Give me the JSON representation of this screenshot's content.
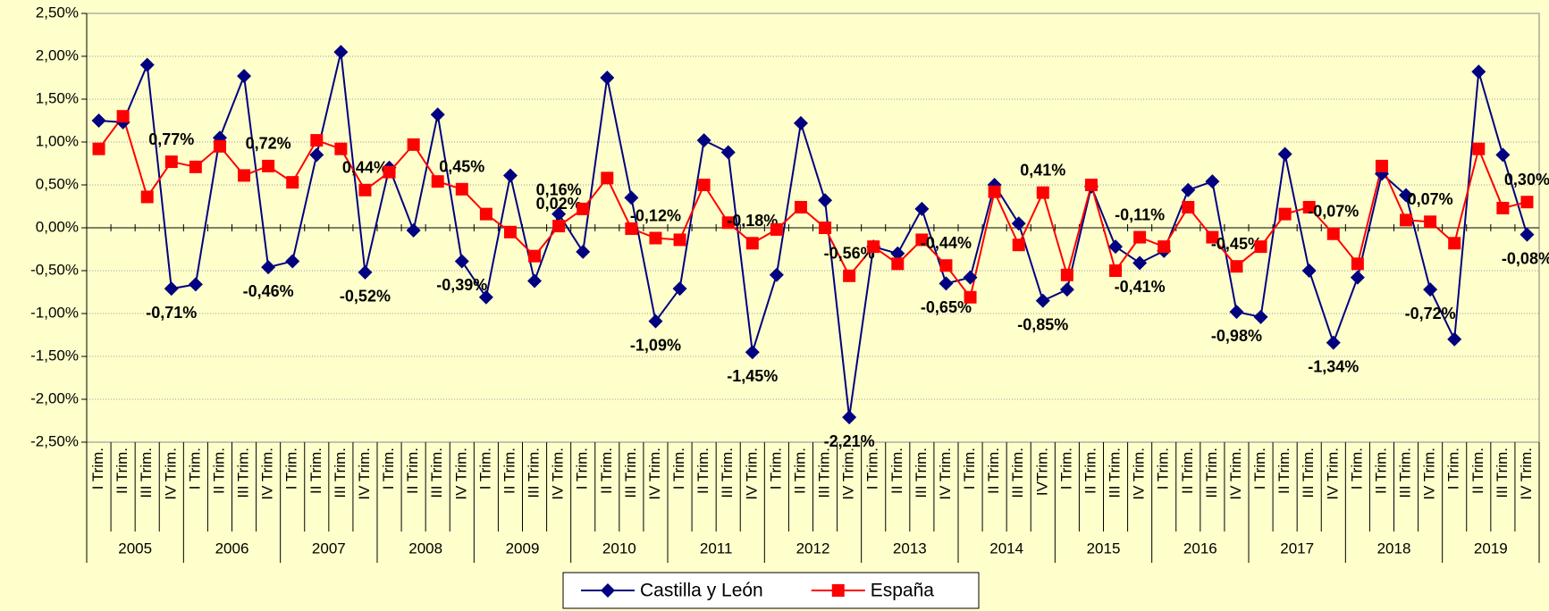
{
  "chart_data": {
    "type": "line",
    "categories": [
      "I Trim.",
      "II Trim.",
      "III Trim.",
      "IV Trim.",
      "I Trim.",
      "II Trim.",
      "III Trim.",
      "IV Trim.",
      "I Trim.",
      "II Trim.",
      "III Trim.",
      "IV Trim.",
      "I Trim.",
      "II Trim.",
      "III Trim.",
      "IV Trim.",
      "I Trim.",
      "II Trim.",
      "III Trim.",
      "IV Trim.",
      "I Trim.",
      "II Trim.",
      "III Trim.",
      "IV Trim.",
      "I Trim.",
      "II Trim.",
      "III Trim.",
      "IV Trim.",
      "I Trim.",
      "II Trim.",
      "III Trim.",
      "IV Trim.",
      "I Trim.",
      "II Trim.",
      "III Trim.",
      "IV Trim.",
      "I Trim.",
      "II Trim.",
      "III Trim.",
      "IVTrim.",
      "I Trim.",
      "II Trim.",
      "III Trim.",
      "IV Trim.",
      "I Trim.",
      "II Trim.",
      "III Trim.",
      "IV Trim.",
      "I Trim.",
      "II Trim.",
      "III Trim.",
      "IV Trim.",
      "I Trim.",
      "II Trim.",
      "III Trim.",
      "IV Trim.",
      "I Trim.",
      "II Trim.",
      "III Trim.",
      "IV Trim."
    ],
    "years": [
      "2005",
      "2006",
      "2007",
      "2008",
      "2009",
      "2010",
      "2011",
      "2012",
      "2013",
      "2014",
      "2015",
      "2016",
      "2017",
      "2018",
      "2019"
    ],
    "series": [
      {
        "name": "Castilla y León",
        "color": "#000080",
        "marker": "diamond",
        "values": [
          1.25,
          1.23,
          1.9,
          -0.71,
          -0.66,
          1.05,
          1.77,
          -0.46,
          -0.39,
          0.85,
          2.05,
          -0.52,
          0.7,
          -0.03,
          1.32,
          -0.39,
          -0.81,
          0.61,
          -0.62,
          0.16,
          -0.28,
          1.75,
          0.35,
          -1.09,
          -0.71,
          1.02,
          0.88,
          -1.45,
          -0.55,
          1.22,
          0.32,
          -2.21,
          -0.22,
          -0.3,
          0.22,
          -0.65,
          -0.58,
          0.5,
          0.05,
          -0.85,
          -0.72,
          0.48,
          -0.22,
          -0.41,
          -0.27,
          0.44,
          0.54,
          -0.98,
          -1.04,
          0.86,
          -0.5,
          -1.34,
          -0.58,
          0.63,
          0.38,
          -0.72,
          -1.3,
          1.82,
          0.85,
          -0.08
        ],
        "value_labels": [
          null,
          null,
          null,
          "-0,71%",
          null,
          null,
          null,
          "-0,46%",
          null,
          null,
          null,
          "-0,52%",
          null,
          null,
          null,
          "-0,39%",
          null,
          null,
          null,
          "0,16%",
          null,
          null,
          null,
          "-1,09%",
          null,
          null,
          null,
          "-1,45%",
          null,
          null,
          null,
          "-2,21%",
          null,
          null,
          null,
          "-0,65%",
          null,
          null,
          null,
          "-0,85%",
          null,
          null,
          null,
          "-0,41%",
          null,
          null,
          null,
          "-0,98%",
          null,
          null,
          null,
          "-1,34%",
          null,
          null,
          null,
          "-0,72%",
          null,
          null,
          null,
          "-0,08%"
        ]
      },
      {
        "name": "España",
        "color": "#ff0000",
        "marker": "square",
        "values": [
          0.92,
          1.3,
          0.36,
          0.77,
          0.71,
          0.95,
          0.61,
          0.72,
          0.53,
          1.02,
          0.92,
          0.44,
          0.65,
          0.97,
          0.54,
          0.45,
          0.16,
          -0.05,
          -0.33,
          0.02,
          0.22,
          0.58,
          -0.01,
          -0.12,
          -0.14,
          0.5,
          0.06,
          -0.18,
          -0.02,
          0.24,
          0.0,
          -0.56,
          -0.22,
          -0.42,
          -0.14,
          -0.44,
          -0.81,
          0.42,
          -0.2,
          0.41,
          -0.55,
          0.5,
          -0.5,
          -0.11,
          -0.22,
          0.24,
          -0.11,
          -0.45,
          -0.22,
          0.16,
          0.24,
          -0.07,
          -0.42,
          0.72,
          0.09,
          0.07,
          -0.18,
          0.92,
          0.23,
          0.3
        ],
        "value_labels": [
          null,
          null,
          null,
          "0,77%",
          null,
          null,
          null,
          "0,72%",
          null,
          null,
          null,
          "0,44%",
          null,
          null,
          null,
          "0,45%",
          null,
          null,
          null,
          "0,02%",
          null,
          null,
          null,
          "-0,12%",
          null,
          null,
          null,
          "-0,18%",
          null,
          null,
          null,
          "-0,56%",
          null,
          null,
          null,
          "-0,44%",
          null,
          null,
          null,
          "0,41%",
          null,
          null,
          null,
          "-0,11%",
          null,
          null,
          null,
          "-0,45%",
          null,
          null,
          null,
          "-0,07%",
          null,
          null,
          null,
          "0,07%",
          null,
          null,
          null,
          "0,30%"
        ]
      }
    ],
    "ylim": [
      -2.5,
      2.5
    ],
    "yticks": [
      {
        "value": -2.5,
        "label": "-2,50%"
      },
      {
        "value": -2,
        "label": "-2,00%"
      },
      {
        "value": -1.5,
        "label": "-1,50%"
      },
      {
        "value": -1,
        "label": "-1,00%"
      },
      {
        "value": -0.5,
        "label": "-0,50%"
      },
      {
        "value": 0,
        "label": "0,00%"
      },
      {
        "value": 0.5,
        "label": "0,50%"
      },
      {
        "value": 1,
        "label": "1,00%"
      },
      {
        "value": 1.5,
        "label": "1,50%"
      },
      {
        "value": 2,
        "label": "2,00%"
      },
      {
        "value": 2.5,
        "label": "2,50%"
      }
    ],
    "grid": true,
    "legend": "bottom"
  }
}
